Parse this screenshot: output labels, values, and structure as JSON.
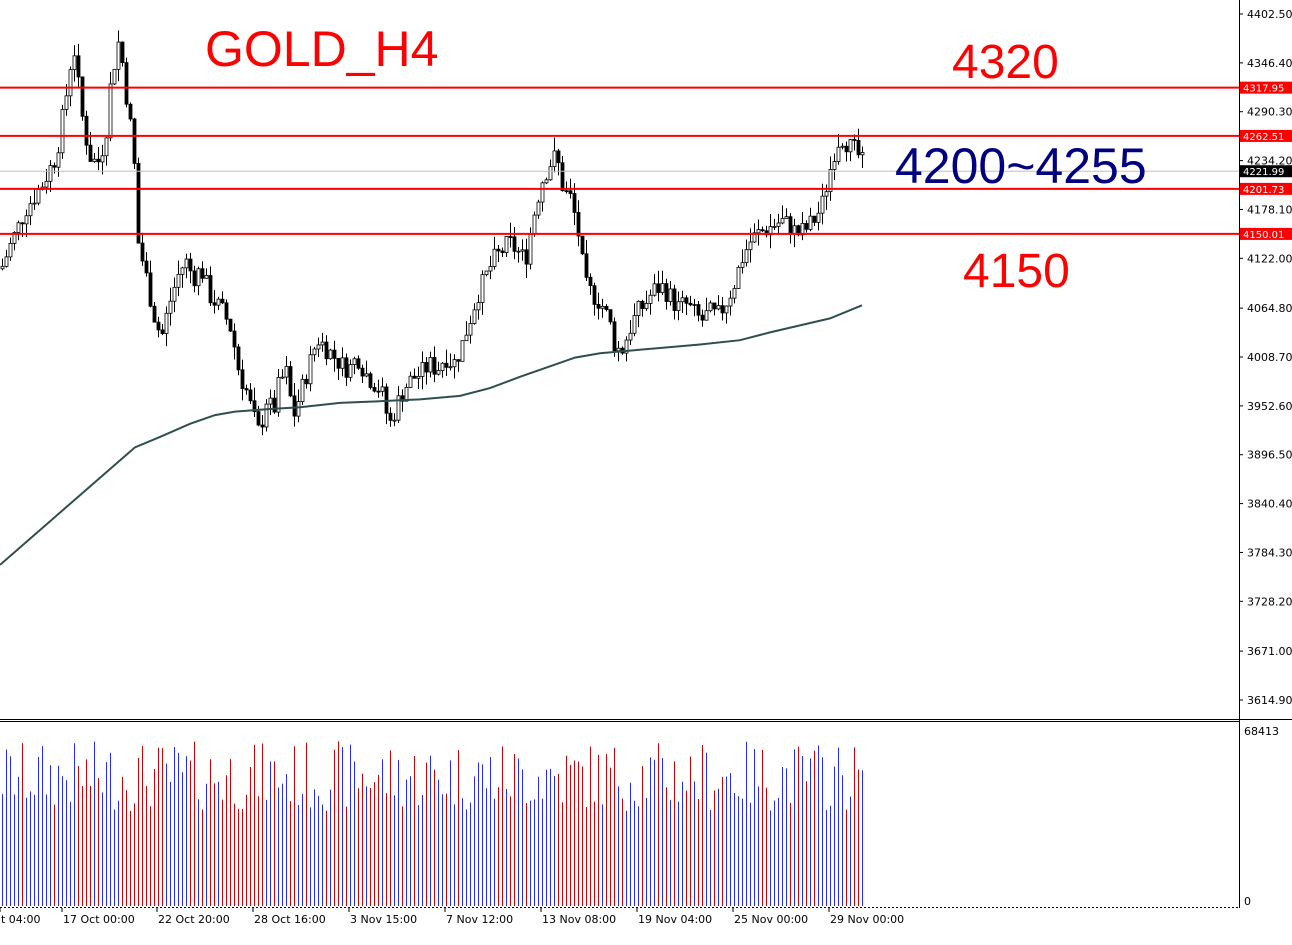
{
  "chart_data": {
    "type": "candlestick",
    "title": "GOLD_H4",
    "y_ticks": [
      "4402.50",
      "4346.40",
      "4290.30",
      "4234.20",
      "4178.10",
      "4122.00",
      "4064.80",
      "4008.70",
      "3952.60",
      "3896.50",
      "3840.40",
      "3784.30",
      "3728.20",
      "3671.00",
      "3614.90"
    ],
    "ylim": [
      3614.9,
      4402.5
    ],
    "x_ticks": [
      "t 04:00",
      "17 Oct 00:00",
      "22 Oct 20:00",
      "28 Oct 16:00",
      "3 Nov 15:00",
      "7 Nov 12:00",
      "13 Nov 08:00",
      "19 Nov 04:00",
      "25 Nov 00:00",
      "29 Nov 00:00"
    ],
    "current_price": "4221.99",
    "levels": [
      {
        "value": 4317.95,
        "label": "4317.95"
      },
      {
        "value": 4262.51,
        "label": "4262.51"
      },
      {
        "value": 4201.73,
        "label": "4201.73"
      },
      {
        "value": 4150.01,
        "label": "4150.01"
      }
    ],
    "annotations": {
      "resistance": "4320",
      "range": "4200~4255",
      "support": "4150"
    },
    "close_path": [
      [
        0,
        4110
      ],
      [
        10,
        4140
      ],
      [
        25,
        4180
      ],
      [
        40,
        4205
      ],
      [
        55,
        4240
      ],
      [
        65,
        4310
      ],
      [
        72,
        4370
      ],
      [
        80,
        4290
      ],
      [
        88,
        4240
      ],
      [
        96,
        4230
      ],
      [
        104,
        4260
      ],
      [
        110,
        4330
      ],
      [
        118,
        4375
      ],
      [
        126,
        4300
      ],
      [
        132,
        4250
      ],
      [
        137,
        4140
      ],
      [
        145,
        4100
      ],
      [
        152,
        4060
      ],
      [
        160,
        4030
      ],
      [
        168,
        4070
      ],
      [
        176,
        4100
      ],
      [
        184,
        4120
      ],
      [
        192,
        4100
      ],
      [
        200,
        4110
      ],
      [
        208,
        4080
      ],
      [
        215,
        4070
      ],
      [
        222,
        4060
      ],
      [
        230,
        4040
      ],
      [
        238,
        3990
      ],
      [
        245,
        3970
      ],
      [
        252,
        3940
      ],
      [
        258,
        3920
      ],
      [
        265,
        3960
      ],
      [
        272,
        3945
      ],
      [
        278,
        3980
      ],
      [
        285,
        3990
      ],
      [
        292,
        3940
      ],
      [
        300,
        3970
      ],
      [
        308,
        4000
      ],
      [
        316,
        4030
      ],
      [
        324,
        4020
      ],
      [
        332,
        4010
      ],
      [
        340,
        4000
      ],
      [
        348,
        3995
      ],
      [
        356,
        4010
      ],
      [
        364,
        3990
      ],
      [
        372,
        3980
      ],
      [
        380,
        3970
      ],
      [
        388,
        3930
      ],
      [
        396,
        3955
      ],
      [
        404,
        3975
      ],
      [
        412,
        3985
      ],
      [
        420,
        3990
      ],
      [
        428,
        4000
      ],
      [
        436,
        3995
      ],
      [
        444,
        4010
      ],
      [
        452,
        4000
      ],
      [
        460,
        4020
      ],
      [
        468,
        4050
      ],
      [
        476,
        4080
      ],
      [
        484,
        4100
      ],
      [
        492,
        4120
      ],
      [
        500,
        4130
      ],
      [
        508,
        4140
      ],
      [
        516,
        4130
      ],
      [
        524,
        4120
      ],
      [
        532,
        4170
      ],
      [
        540,
        4210
      ],
      [
        548,
        4230
      ],
      [
        555,
        4240
      ],
      [
        562,
        4200
      ],
      [
        570,
        4190
      ],
      [
        577,
        4150
      ],
      [
        584,
        4090
      ],
      [
        592,
        4080
      ],
      [
        600,
        4070
      ],
      [
        608,
        4050
      ],
      [
        614,
        4020
      ],
      [
        620,
        4015
      ],
      [
        628,
        4040
      ],
      [
        636,
        4060
      ],
      [
        644,
        4070
      ],
      [
        652,
        4085
      ],
      [
        660,
        4090
      ],
      [
        668,
        4080
      ],
      [
        676,
        4065
      ],
      [
        684,
        4070
      ],
      [
        692,
        4060
      ],
      [
        700,
        4050
      ],
      [
        708,
        4060
      ],
      [
        716,
        4055
      ],
      [
        724,
        4070
      ],
      [
        732,
        4090
      ],
      [
        740,
        4120
      ],
      [
        748,
        4140
      ],
      [
        756,
        4150
      ],
      [
        764,
        4155
      ],
      [
        772,
        4160
      ],
      [
        780,
        4165
      ],
      [
        788,
        4160
      ],
      [
        796,
        4150
      ],
      [
        804,
        4155
      ],
      [
        812,
        4165
      ],
      [
        820,
        4180
      ],
      [
        828,
        4220
      ],
      [
        835,
        4255
      ],
      [
        842,
        4262
      ],
      [
        848,
        4250
      ],
      [
        854,
        4245
      ],
      [
        860,
        4235
      ],
      [
        864,
        4222
      ]
    ],
    "ma_path": [
      [
        0,
        3770
      ],
      [
        30,
        3800
      ],
      [
        60,
        3830
      ],
      [
        90,
        3860
      ],
      [
        120,
        3890
      ],
      [
        135,
        3905
      ],
      [
        160,
        3917
      ],
      [
        190,
        3932
      ],
      [
        215,
        3942
      ],
      [
        235,
        3946
      ],
      [
        270,
        3949
      ],
      [
        300,
        3951
      ],
      [
        340,
        3956
      ],
      [
        380,
        3958
      ],
      [
        420,
        3960
      ],
      [
        460,
        3964
      ],
      [
        490,
        3973
      ],
      [
        520,
        3986
      ],
      [
        550,
        3998
      ],
      [
        575,
        4008
      ],
      [
        600,
        4013
      ],
      [
        630,
        4016
      ],
      [
        660,
        4019
      ],
      [
        700,
        4023
      ],
      [
        740,
        4028
      ],
      [
        770,
        4037
      ],
      [
        800,
        4045
      ],
      [
        830,
        4053
      ],
      [
        862,
        4068
      ]
    ],
    "volume_max_label": "68413",
    "volume_zero_label": "0"
  }
}
